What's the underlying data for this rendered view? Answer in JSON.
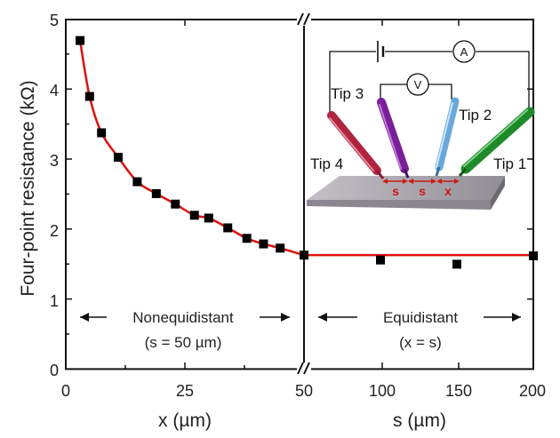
{
  "chart_data": {
    "type": "scatter",
    "ylabel": "Four-point resistance (kΩ)",
    "ylim": [
      0,
      5
    ],
    "yticks": [
      "0",
      "1",
      "2",
      "3",
      "4",
      "5"
    ],
    "panels": [
      {
        "region": "Nonequidistant",
        "condition": "(s = 50 µm)",
        "xlabel": "x (µm)",
        "xlim": [
          0,
          50
        ],
        "xticks": [
          "0",
          "25",
          "50"
        ],
        "x": [
          3,
          5,
          7.5,
          11,
          15,
          19,
          23,
          27,
          30,
          34,
          38,
          41.5,
          45,
          50
        ],
        "y": [
          4.7,
          3.9,
          3.38,
          3.03,
          2.68,
          2.51,
          2.36,
          2.2,
          2.16,
          2.02,
          1.87,
          1.79,
          1.73,
          1.63
        ],
        "fit_color": "#e0100c"
      },
      {
        "region": "Equidistant",
        "condition": "(x = s)",
        "xlabel": "s (µm)",
        "xlim": [
          50,
          200
        ],
        "xticks": [
          "50",
          "100",
          "150",
          "200"
        ],
        "x": [
          100,
          150,
          200
        ],
        "y": [
          1.56,
          1.5,
          1.62
        ],
        "fit_value": 1.63,
        "fit_color": "#e0100c"
      }
    ],
    "inset": {
      "tips": [
        "Tip 1",
        "Tip 2",
        "Tip 3",
        "Tip 4"
      ],
      "tip_colors": [
        "#1f8a2a",
        "#6aa8dc",
        "#7a1f9a",
        "#b0243e"
      ],
      "ammeter": "A",
      "voltmeter": "V",
      "spacing_labels": [
        "s",
        "s",
        "x"
      ],
      "spacing_color": "#cc1a14"
    }
  }
}
